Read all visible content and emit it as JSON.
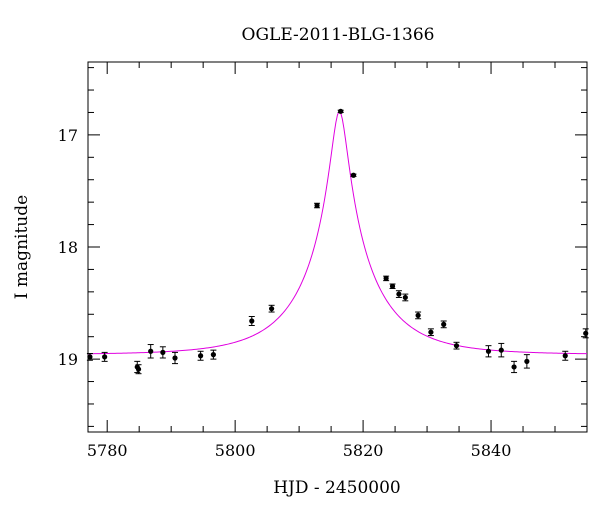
{
  "chart_data": {
    "type": "scatter",
    "title": "OGLE-2011-BLG-1366",
    "xlabel": "HJD - 2450000",
    "ylabel": "I magnitude",
    "xlim": [
      5777,
      5855
    ],
    "ylim": [
      19.65,
      16.35
    ],
    "y_inverted": true,
    "x_ticks": [
      5780,
      5800,
      5820,
      5840
    ],
    "y_ticks": [
      17,
      18,
      19
    ],
    "grid": false,
    "marker_color": "#000000",
    "model_color": "#e000e0",
    "series": [
      {
        "points": [
          {
            "x": 5777.3,
            "y": 18.98,
            "err": 0.03
          },
          {
            "x": 5779.6,
            "y": 18.98,
            "err": 0.04
          },
          {
            "x": 5784.7,
            "y": 19.07,
            "err": 0.05
          },
          {
            "x": 5784.9,
            "y": 19.09,
            "err": 0.04
          },
          {
            "x": 5786.8,
            "y": 18.93,
            "err": 0.06
          },
          {
            "x": 5788.7,
            "y": 18.94,
            "err": 0.05
          },
          {
            "x": 5790.6,
            "y": 18.99,
            "err": 0.05
          },
          {
            "x": 5794.6,
            "y": 18.97,
            "err": 0.04
          },
          {
            "x": 5796.6,
            "y": 18.96,
            "err": 0.04
          },
          {
            "x": 5802.6,
            "y": 18.66,
            "err": 0.04
          },
          {
            "x": 5805.7,
            "y": 18.55,
            "err": 0.03
          },
          {
            "x": 5812.8,
            "y": 17.63,
            "err": 0.02
          },
          {
            "x": 5816.5,
            "y": 16.79,
            "err": 0.01
          },
          {
            "x": 5818.5,
            "y": 17.36,
            "err": 0.01
          },
          {
            "x": 5823.6,
            "y": 18.28,
            "err": 0.02
          },
          {
            "x": 5824.6,
            "y": 18.35,
            "err": 0.02
          },
          {
            "x": 5825.6,
            "y": 18.42,
            "err": 0.03
          },
          {
            "x": 5826.6,
            "y": 18.45,
            "err": 0.03
          },
          {
            "x": 5828.6,
            "y": 18.61,
            "err": 0.03
          },
          {
            "x": 5830.6,
            "y": 18.76,
            "err": 0.03
          },
          {
            "x": 5832.6,
            "y": 18.69,
            "err": 0.03
          },
          {
            "x": 5834.6,
            "y": 18.88,
            "err": 0.03
          },
          {
            "x": 5839.6,
            "y": 18.93,
            "err": 0.05
          },
          {
            "x": 5841.6,
            "y": 18.92,
            "err": 0.06
          },
          {
            "x": 5843.6,
            "y": 19.07,
            "err": 0.05
          },
          {
            "x": 5845.6,
            "y": 19.02,
            "err": 0.06
          },
          {
            "x": 5851.6,
            "y": 18.97,
            "err": 0.04
          },
          {
            "x": 5854.8,
            "y": 18.77,
            "err": 0.04
          }
        ]
      }
    ],
    "model": {
      "type": "lightcurve",
      "t0": 5816.3,
      "u0": 0.11,
      "tE": 11.0,
      "baseline_mag": 18.96,
      "peak_mag": 16.79,
      "sample_step": 0.25
    }
  }
}
